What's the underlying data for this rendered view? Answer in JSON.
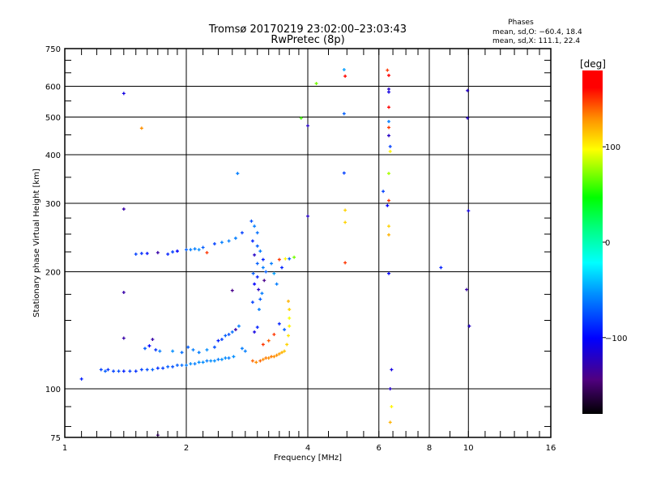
{
  "chart_data": {
    "type": "scatter",
    "title": "Tromsø 20170219 23:02:00–23:03:43",
    "subtitle": "RwPretec (8p)",
    "stats_title": "Phases",
    "stats_o": "mean, sd,O: −60.4, 18.4",
    "stats_x": "mean, sd,X: 111.1, 22.4",
    "xlabel": "Frequency [MHz]",
    "ylabel": "Stationary phase Virtual Height [km]",
    "xscale": "log",
    "yscale": "log",
    "xlim": [
      1,
      16
    ],
    "ylim": [
      75,
      750
    ],
    "xticks": [
      1,
      2,
      4,
      6,
      8,
      10,
      16
    ],
    "xtick_labels": [
      "1",
      "2",
      "4",
      "6",
      "8",
      "10",
      "16"
    ],
    "yticks": [
      75,
      100,
      200,
      300,
      400,
      500,
      600,
      750
    ],
    "ytick_labels": [
      "75",
      "100",
      "200",
      "300",
      "400",
      "500",
      "600",
      "750"
    ],
    "grid": true,
    "colorbar": {
      "label": "[deg]",
      "range": [
        -180,
        180
      ],
      "ticks": [
        100,
        0,
        -100
      ],
      "tick_labels": [
        "100",
        "0",
        "−100"
      ]
    },
    "points": [
      [
        1.1,
        106,
        -90
      ],
      [
        1.23,
        112,
        -80
      ],
      [
        1.26,
        111,
        -70
      ],
      [
        1.28,
        112,
        -85
      ],
      [
        1.32,
        111,
        -80
      ],
      [
        1.36,
        111,
        -75
      ],
      [
        1.4,
        111,
        -90
      ],
      [
        1.45,
        111,
        -80
      ],
      [
        1.5,
        111,
        -85
      ],
      [
        1.55,
        112,
        -80
      ],
      [
        1.6,
        112,
        -75
      ],
      [
        1.65,
        112,
        -70
      ],
      [
        1.7,
        113,
        -85
      ],
      [
        1.75,
        113,
        -80
      ],
      [
        1.8,
        114,
        -70
      ],
      [
        1.85,
        114,
        -75
      ],
      [
        1.9,
        115,
        -70
      ],
      [
        1.95,
        115,
        -65
      ],
      [
        2.0,
        115,
        -60
      ],
      [
        2.05,
        116,
        -55
      ],
      [
        2.1,
        116,
        -60
      ],
      [
        2.15,
        117,
        -55
      ],
      [
        2.2,
        117,
        -55
      ],
      [
        2.25,
        118,
        -60
      ],
      [
        2.3,
        118,
        -55
      ],
      [
        2.35,
        118,
        -55
      ],
      [
        2.4,
        119,
        -60
      ],
      [
        2.45,
        119,
        -55
      ],
      [
        2.5,
        120,
        -55
      ],
      [
        2.55,
        120,
        -60
      ],
      [
        2.62,
        121,
        -55
      ],
      [
        1.58,
        127,
        -70
      ],
      [
        1.62,
        129,
        -100
      ],
      [
        1.68,
        126,
        -85
      ],
      [
        1.72,
        125,
        -60
      ],
      [
        1.85,
        125,
        -55
      ],
      [
        1.95,
        124,
        -65
      ],
      [
        2.02,
        128,
        -70
      ],
      [
        2.08,
        126,
        -60
      ],
      [
        2.15,
        124,
        -60
      ],
      [
        2.25,
        126,
        -55
      ],
      [
        2.35,
        128,
        -75
      ],
      [
        2.4,
        133,
        -90
      ],
      [
        2.45,
        134,
        -80
      ],
      [
        2.5,
        137,
        -70
      ],
      [
        2.55,
        138,
        -75
      ],
      [
        2.6,
        140,
        -65
      ],
      [
        2.65,
        142,
        -130
      ],
      [
        2.7,
        145,
        -60
      ],
      [
        2.75,
        127,
        -60
      ],
      [
        2.8,
        125,
        -60
      ],
      [
        1.4,
        135,
        -130
      ],
      [
        1.65,
        134,
        -130
      ],
      [
        1.4,
        177,
        -130
      ],
      [
        2.6,
        179,
        -140
      ],
      [
        1.4,
        290,
        -130
      ],
      [
        1.4,
        575,
        -110
      ],
      [
        1.55,
        468,
        130
      ],
      [
        1.7,
        76,
        -140
      ],
      [
        1.5,
        222,
        -80
      ],
      [
        1.55,
        223,
        -85
      ],
      [
        1.6,
        223,
        -95
      ],
      [
        1.7,
        224,
        -130
      ],
      [
        1.8,
        222,
        -90
      ],
      [
        1.85,
        225,
        -80
      ],
      [
        1.9,
        226,
        -100
      ],
      [
        2.0,
        228,
        -70
      ],
      [
        2.05,
        228,
        -60
      ],
      [
        2.1,
        229,
        -60
      ],
      [
        2.15,
        228,
        -55
      ],
      [
        2.2,
        231,
        -70
      ],
      [
        2.25,
        224,
        150
      ],
      [
        2.35,
        236,
        -80
      ],
      [
        2.45,
        238,
        -60
      ],
      [
        2.55,
        240,
        -60
      ],
      [
        2.65,
        244,
        -60
      ],
      [
        2.75,
        252,
        -80
      ],
      [
        2.68,
        358,
        -60
      ],
      [
        2.9,
        270,
        -75
      ],
      [
        2.95,
        262,
        -60
      ],
      [
        3.0,
        252,
        -65
      ],
      [
        2.92,
        240,
        -90
      ],
      [
        3.0,
        233,
        -70
      ],
      [
        3.05,
        226,
        -60
      ],
      [
        2.95,
        221,
        -120
      ],
      [
        3.0,
        210,
        -70
      ],
      [
        3.1,
        205,
        -60
      ],
      [
        2.93,
        198,
        -70
      ],
      [
        3.0,
        194,
        -90
      ],
      [
        2.95,
        186,
        -100
      ],
      [
        3.02,
        180,
        -120
      ],
      [
        3.08,
        176,
        -60
      ],
      [
        3.12,
        190,
        -140
      ],
      [
        3.15,
        200,
        -70
      ],
      [
        3.1,
        215,
        -90
      ],
      [
        3.03,
        160,
        -60
      ],
      [
        2.92,
        167,
        -80
      ],
      [
        3.05,
        170,
        -70
      ],
      [
        3.25,
        210,
        -60
      ],
      [
        3.3,
        198,
        -50
      ],
      [
        3.35,
        186,
        -60
      ],
      [
        3.4,
        215,
        150
      ],
      [
        3.45,
        205,
        -90
      ],
      [
        3.52,
        216,
        100
      ],
      [
        3.6,
        216,
        -70
      ],
      [
        3.7,
        218,
        70
      ],
      [
        2.92,
        118,
        140
      ],
      [
        2.98,
        117,
        130
      ],
      [
        3.05,
        118,
        140
      ],
      [
        3.1,
        119,
        130
      ],
      [
        3.15,
        120,
        135
      ],
      [
        3.2,
        120,
        130
      ],
      [
        3.25,
        121,
        135
      ],
      [
        3.3,
        121,
        130
      ],
      [
        3.35,
        122,
        130
      ],
      [
        3.4,
        123,
        125
      ],
      [
        3.45,
        124,
        120
      ],
      [
        3.5,
        125,
        115
      ],
      [
        3.55,
        130,
        110
      ],
      [
        3.58,
        137,
        105
      ],
      [
        3.6,
        145,
        100
      ],
      [
        3.6,
        152,
        95
      ],
      [
        3.6,
        160,
        110
      ],
      [
        3.58,
        168,
        120
      ],
      [
        3.1,
        130,
        150
      ],
      [
        3.2,
        133,
        140
      ],
      [
        3.3,
        138,
        150
      ],
      [
        3.5,
        142,
        -70
      ],
      [
        3.4,
        147,
        -90
      ],
      [
        2.95,
        140,
        -110
      ],
      [
        3.0,
        144,
        -90
      ],
      [
        4.0,
        475,
        -120
      ],
      [
        4.0,
        278,
        -120
      ],
      [
        3.85,
        497,
        60
      ],
      [
        4.2,
        610,
        70
      ],
      [
        4.92,
        662,
        -50
      ],
      [
        4.95,
        637,
        160
      ],
      [
        4.92,
        510,
        -70
      ],
      [
        4.92,
        359,
        -80
      ],
      [
        4.95,
        288,
        110
      ],
      [
        4.95,
        268,
        110
      ],
      [
        4.95,
        211,
        150
      ],
      [
        6.15,
        322,
        -80
      ],
      [
        6.3,
        660,
        150
      ],
      [
        6.35,
        640,
        170
      ],
      [
        6.35,
        590,
        -120
      ],
      [
        6.35,
        580,
        -110
      ],
      [
        6.35,
        530,
        175
      ],
      [
        6.35,
        487,
        -60
      ],
      [
        6.35,
        470,
        150
      ],
      [
        6.35,
        448,
        -120
      ],
      [
        6.4,
        420,
        -80
      ],
      [
        6.4,
        408,
        100
      ],
      [
        6.35,
        358,
        80
      ],
      [
        6.35,
        305,
        150
      ],
      [
        6.3,
        296,
        -100
      ],
      [
        6.35,
        262,
        110
      ],
      [
        6.35,
        249,
        120
      ],
      [
        6.35,
        198,
        -100
      ],
      [
        6.45,
        112,
        -110
      ],
      [
        6.4,
        100,
        -120
      ],
      [
        6.45,
        90,
        100
      ],
      [
        6.4,
        82,
        120
      ],
      [
        6.5,
        72,
        -130
      ],
      [
        8.55,
        205,
        -90
      ],
      [
        9.95,
        585,
        -120
      ],
      [
        9.95,
        497,
        -120
      ],
      [
        10.0,
        287,
        -110
      ],
      [
        9.9,
        180,
        -130
      ],
      [
        10.05,
        145,
        -120
      ]
    ]
  }
}
